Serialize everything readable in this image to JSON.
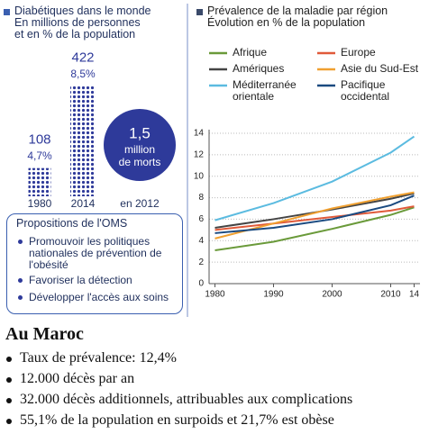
{
  "chart_data": [
    {
      "type": "bar",
      "title": "Diabétiques dans le monde",
      "subtitle": [
        "En millions de personnes",
        "et en % de la population"
      ],
      "categories": [
        "1980",
        "2014"
      ],
      "values": [
        108,
        422
      ],
      "percent_labels": [
        "4,7%",
        "8,5%"
      ],
      "color": "#2e3a9a"
    },
    {
      "type": "line",
      "title": "Prévalence de la maladie par région",
      "subtitle": "Évolution en % de la population",
      "x": [
        1980,
        1990,
        2000,
        2010,
        2014
      ],
      "xlim": [
        1979,
        2015
      ],
      "xticks": [
        1980,
        1990,
        2000,
        2010,
        {
          "value": 2014,
          "label": "14"
        }
      ],
      "ylim": [
        0,
        14
      ],
      "yticks": [
        0,
        2,
        4,
        6,
        8,
        10,
        12,
        14
      ],
      "grid": true,
      "series": [
        {
          "name": "Afrique",
          "color": "#6a9a3a",
          "values": [
            3.1,
            3.9,
            5.1,
            6.4,
            7.1
          ]
        },
        {
          "name": "Europe",
          "color": "#e05a3a",
          "values": [
            5.0,
            5.6,
            6.2,
            6.8,
            7.2
          ]
        },
        {
          "name": "Amériques",
          "color": "#444444",
          "values": [
            5.2,
            6.0,
            6.9,
            7.9,
            8.4
          ]
        },
        {
          "name": "Asie du Sud-Est",
          "color": "#f0a030",
          "values": [
            4.2,
            5.6,
            7.0,
            8.1,
            8.5
          ]
        },
        {
          "name": "Méditerranée orientale",
          "color": "#5bbbe0",
          "values": [
            5.9,
            7.5,
            9.5,
            12.2,
            13.7
          ]
        },
        {
          "name": "Pacifique occidental",
          "color": "#1a4a80",
          "values": [
            4.7,
            5.2,
            6.0,
            7.3,
            8.2
          ]
        }
      ]
    }
  ],
  "deaths": {
    "number": "1,5",
    "lines": [
      "million",
      "de morts"
    ],
    "caption": "en 2012"
  },
  "proposals": {
    "title": "Propositions de l'OMS",
    "items": [
      "Promouvoir les politiques nationales de prévention de l'obésité",
      "Favoriser la détection",
      "Développer l'accès aux soins"
    ]
  },
  "morocco": {
    "title": "Au Maroc",
    "items": [
      "Taux de prévalence: 12,4%",
      "12.000 décès par an",
      "32.000 décès additionnels, attribuables aux complications",
      "55,1% de la population en surpoids et 21,7% est obèse"
    ]
  }
}
